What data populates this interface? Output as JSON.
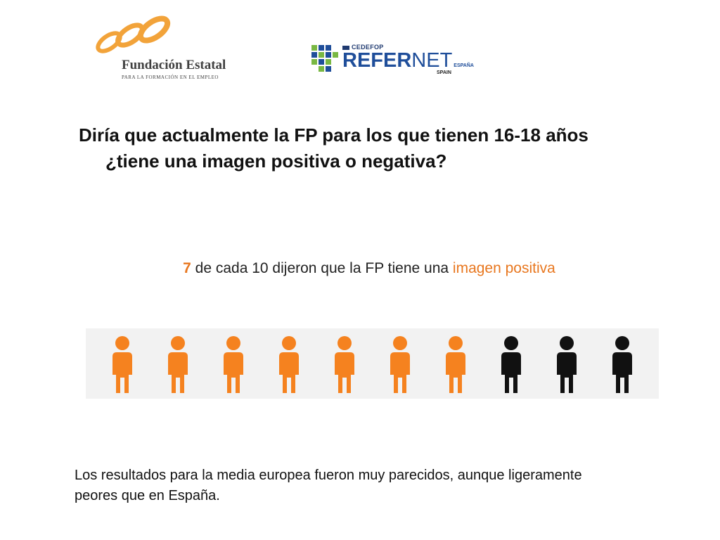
{
  "logos": {
    "fundae_name": "Fundación Estatal",
    "fundae_sub": "PARA LA FORMACIÓN EN EL EMPLEO",
    "cedefop": "CEDEFOP",
    "refer": "REFER",
    "net": "NET",
    "espana": "ESPAÑA",
    "spain": "SPAIN"
  },
  "question": {
    "line1": "Diría que actualmente la FP para los que tienen 16-18 años",
    "line2": "¿tiene una imagen positiva o negativa?"
  },
  "highlight": {
    "number": "7",
    "middle": " de cada 10 dijeron que la FP tiene una ",
    "tail": "imagen positiva"
  },
  "chart_data": {
    "type": "pictogram",
    "total": 10,
    "positive": 7,
    "negative": 3,
    "positive_color": "#f5821f",
    "negative_color": "#111111"
  },
  "footnote": "Los resultados para la media europea fueron muy parecidos, aunque ligeramente peores que en España.",
  "colors": {
    "accent": "#e8771f",
    "fundae_orange": "#f2a33a",
    "refernet_blue": "#1f4e9a",
    "refernet_green": "#79b843"
  }
}
